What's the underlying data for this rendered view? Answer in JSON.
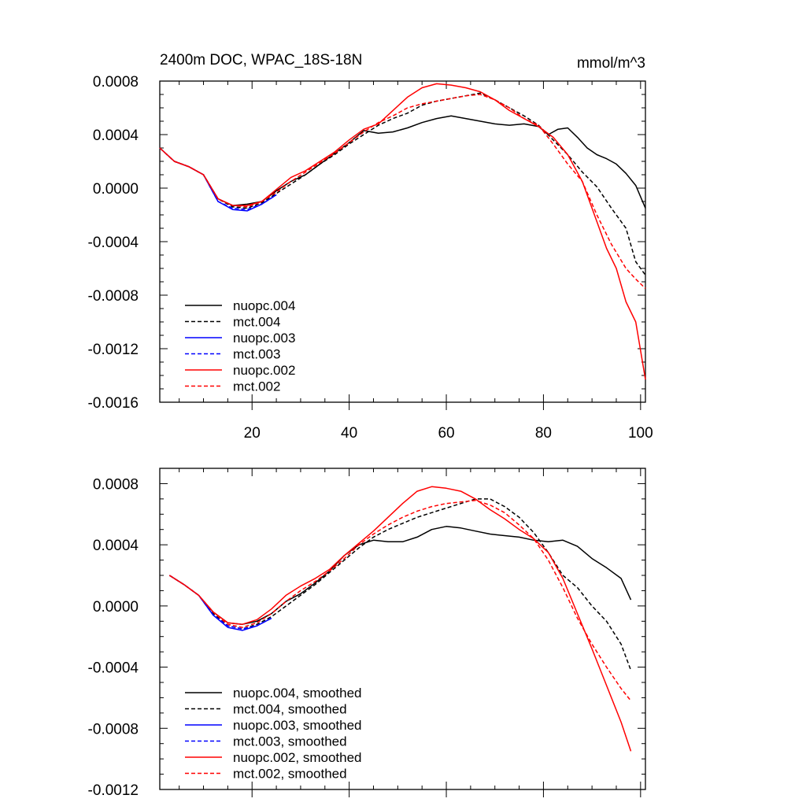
{
  "figure": {
    "title_left": "2400m DOC, WPAC_18S-18N",
    "title_right": "mmol/m^3"
  },
  "colors": {
    "black": "#000000",
    "blue": "#0000ff",
    "red": "#ff0000"
  },
  "chart_data": [
    {
      "type": "line",
      "title": "2400m DOC, WPAC_18S-18N",
      "units": "mmol/m^3",
      "xlim": [
        1,
        101
      ],
      "ylim": [
        -0.0016,
        0.0008
      ],
      "xticks": [
        20,
        40,
        60,
        80,
        100
      ],
      "xtick_labels": [
        "20",
        "40",
        "60",
        "80",
        "100"
      ],
      "yticks": [
        0.0008,
        0.0004,
        0.0,
        -0.0004,
        -0.0008,
        -0.0012,
        -0.0016
      ],
      "ytick_labels": [
        "0.0008",
        "0.0004",
        "0.0000",
        "-0.0004",
        "-0.0008",
        "-0.0012",
        "-0.0016"
      ],
      "legend_position": "bottom-left",
      "series": [
        {
          "name": "nuopc.004",
          "color": "#000000",
          "dash": "solid",
          "x": [
            1,
            4,
            7,
            10,
            13,
            16,
            19,
            22,
            25,
            28,
            31,
            34,
            37,
            40,
            43,
            46,
            49,
            52,
            55,
            58,
            61,
            64,
            67,
            70,
            73,
            76,
            79,
            81,
            83,
            85,
            87,
            89,
            91,
            93,
            95,
            97,
            99,
            101
          ],
          "y": [
            0.0003,
            0.0002,
            0.00016,
            0.0001,
            -8e-05,
            -0.00013,
            -0.00012,
            -0.0001,
            -2e-05,
            5e-05,
            0.0001,
            0.00018,
            0.00026,
            0.00034,
            0.00043,
            0.00041,
            0.00042,
            0.00045,
            0.00049,
            0.00052,
            0.00054,
            0.00052,
            0.0005,
            0.00048,
            0.00047,
            0.00048,
            0.00046,
            0.0004,
            0.00044,
            0.00045,
            0.00038,
            0.0003,
            0.00025,
            0.00022,
            0.00018,
            0.00011,
            2e-05,
            -0.00015
          ]
        },
        {
          "name": "mct.004",
          "color": "#000000",
          "dash": "dashed",
          "x": [
            1,
            4,
            7,
            10,
            13,
            16,
            19,
            22,
            25,
            28,
            31,
            34,
            37,
            40,
            43,
            46,
            49,
            52,
            55,
            58,
            61,
            64,
            67,
            70,
            73,
            76,
            79,
            82,
            85,
            88,
            91,
            94,
            97,
            99,
            101
          ],
          "y": [
            0.0003,
            0.0002,
            0.00016,
            0.0001,
            -8e-05,
            -0.00014,
            -0.00015,
            -0.00011,
            -4e-05,
            3e-05,
            0.0001,
            0.00018,
            0.00025,
            0.00033,
            0.0004,
            0.00047,
            0.00052,
            0.00056,
            0.00062,
            0.00065,
            0.00067,
            0.00069,
            0.00071,
            0.00066,
            0.0006,
            0.00054,
            0.00047,
            0.00036,
            0.00025,
            0.00012,
            1e-05,
            -0.00015,
            -0.0003,
            -0.00055,
            -0.00065
          ]
        },
        {
          "name": "nuopc.003",
          "color": "#0000ff",
          "dash": "solid",
          "x": [
            1,
            4,
            7,
            10,
            13,
            16,
            19,
            22,
            25
          ],
          "y": [
            0.0003,
            0.0002,
            0.00016,
            0.0001,
            -0.0001,
            -0.00016,
            -0.00017,
            -0.00012,
            -5e-05
          ]
        },
        {
          "name": "mct.003",
          "color": "#0000ff",
          "dash": "dashed",
          "x": [
            1,
            4,
            7,
            10,
            13,
            16,
            19,
            22,
            25
          ],
          "y": [
            0.0003,
            0.0002,
            0.00016,
            0.0001,
            -0.0001,
            -0.00015,
            -0.00016,
            -0.00012,
            -5e-05
          ]
        },
        {
          "name": "nuopc.002",
          "color": "#ff0000",
          "dash": "solid",
          "x": [
            1,
            4,
            7,
            10,
            13,
            16,
            19,
            22,
            25,
            28,
            31,
            34,
            37,
            40,
            43,
            46,
            49,
            52,
            55,
            58,
            61,
            64,
            67,
            70,
            73,
            76,
            79,
            82,
            85,
            88,
            91,
            93,
            95,
            97,
            99,
            101
          ],
          "y": [
            0.0003,
            0.0002,
            0.00016,
            0.0001,
            -8e-05,
            -0.00013,
            -0.00013,
            -0.0001,
            -1e-05,
            8e-05,
            0.00013,
            0.0002,
            0.00027,
            0.00036,
            0.00044,
            0.00048,
            0.00058,
            0.00068,
            0.00075,
            0.00078,
            0.00077,
            0.00075,
            0.00072,
            0.00066,
            0.00058,
            0.00052,
            0.00046,
            0.00038,
            0.00025,
            5e-05,
            -0.00025,
            -0.00045,
            -0.0006,
            -0.00085,
            -0.001,
            -0.00143
          ]
        },
        {
          "name": "mct.002",
          "color": "#ff0000",
          "dash": "dashed",
          "x": [
            1,
            4,
            7,
            10,
            13,
            16,
            19,
            22,
            25,
            28,
            31,
            34,
            37,
            40,
            43,
            46,
            49,
            52,
            55,
            58,
            61,
            64,
            67,
            70,
            73,
            76,
            79,
            82,
            85,
            88,
            91,
            94,
            97,
            99,
            101
          ],
          "y": [
            0.0003,
            0.0002,
            0.00016,
            0.0001,
            -8e-05,
            -0.00013,
            -0.00014,
            -0.0001,
            -3e-05,
            5e-05,
            0.00012,
            0.00019,
            0.00026,
            0.00034,
            0.00042,
            0.00049,
            0.00054,
            0.0006,
            0.00063,
            0.00065,
            0.00067,
            0.00069,
            0.0007,
            0.00066,
            0.0006,
            0.00052,
            0.00047,
            0.00033,
            0.00018,
            5e-05,
            -0.0002,
            -0.00042,
            -0.0006,
            -0.00068,
            -0.00075
          ]
        }
      ]
    },
    {
      "type": "line",
      "xlim": [
        1,
        101
      ],
      "ylim": [
        -0.0012,
        0.0009
      ],
      "xticks": [
        20,
        40,
        60,
        80,
        100
      ],
      "yticks": [
        0.0008,
        0.0004,
        0.0,
        -0.0004,
        -0.0008,
        -0.0012
      ],
      "ytick_labels": [
        "0.0008",
        "0.0004",
        "0.0000",
        "-0.0004",
        "-0.0008",
        "-0.0012"
      ],
      "legend_position": "bottom-left",
      "series": [
        {
          "name": "nuopc.004, smoothed",
          "color": "#000000",
          "dash": "solid",
          "x": [
            3,
            6,
            9,
            12,
            15,
            18,
            21,
            24,
            27,
            30,
            33,
            36,
            39,
            42,
            45,
            48,
            51,
            54,
            57,
            60,
            63,
            66,
            69,
            72,
            75,
            78,
            81,
            84,
            87,
            90,
            93,
            96,
            98
          ],
          "y": [
            0.0002,
            0.00014,
            7e-05,
            -4e-05,
            -0.00011,
            -0.00012,
            -0.0001,
            -5e-05,
            3e-05,
            8e-05,
            0.00015,
            0.00023,
            0.00033,
            0.0004,
            0.00043,
            0.00042,
            0.00042,
            0.00045,
            0.0005,
            0.00052,
            0.00051,
            0.00049,
            0.00047,
            0.00046,
            0.00045,
            0.00043,
            0.00042,
            0.00043,
            0.00039,
            0.00031,
            0.00025,
            0.00018,
            4e-05
          ]
        },
        {
          "name": "mct.004, smoothed",
          "color": "#000000",
          "dash": "dashed",
          "x": [
            3,
            6,
            9,
            12,
            15,
            18,
            21,
            24,
            27,
            30,
            33,
            36,
            39,
            42,
            45,
            48,
            51,
            54,
            57,
            60,
            63,
            66,
            69,
            72,
            75,
            78,
            81,
            84,
            87,
            90,
            93,
            96,
            98
          ],
          "y": [
            0.0002,
            0.00014,
            7e-05,
            -5e-05,
            -0.00013,
            -0.00015,
            -0.00012,
            -7e-05,
            0.0,
            7e-05,
            0.00014,
            0.00022,
            0.0003,
            0.00038,
            0.00045,
            0.0005,
            0.00054,
            0.00058,
            0.00061,
            0.00064,
            0.00067,
            0.0007,
            0.0007,
            0.00065,
            0.00058,
            0.00048,
            0.00035,
            0.0002,
            0.00012,
            0.0,
            -0.0001,
            -0.00025,
            -0.00042
          ]
        },
        {
          "name": "nuopc.003, smoothed",
          "color": "#0000ff",
          "dash": "solid",
          "x": [
            3,
            6,
            9,
            12,
            15,
            18,
            21,
            24
          ],
          "y": [
            0.0002,
            0.00014,
            7e-05,
            -6e-05,
            -0.00014,
            -0.00016,
            -0.00013,
            -8e-05
          ]
        },
        {
          "name": "mct.003, smoothed",
          "color": "#0000ff",
          "dash": "dashed",
          "x": [
            3,
            6,
            9,
            12,
            15,
            18,
            21,
            24
          ],
          "y": [
            0.0002,
            0.00014,
            7e-05,
            -6e-05,
            -0.00013,
            -0.00015,
            -0.00013,
            -8e-05
          ]
        },
        {
          "name": "nuopc.002, smoothed",
          "color": "#ff0000",
          "dash": "solid",
          "x": [
            3,
            6,
            9,
            12,
            15,
            18,
            21,
            24,
            27,
            30,
            33,
            36,
            39,
            42,
            45,
            48,
            51,
            54,
            57,
            60,
            63,
            66,
            69,
            72,
            75,
            78,
            81,
            84,
            87,
            90,
            93,
            96,
            98
          ],
          "y": [
            0.0002,
            0.00014,
            7e-05,
            -4e-05,
            -0.00011,
            -0.00012,
            -9e-05,
            -2e-05,
            7e-05,
            0.00013,
            0.00018,
            0.00024,
            0.00033,
            0.00041,
            0.00049,
            0.00058,
            0.00067,
            0.00075,
            0.00078,
            0.00077,
            0.00075,
            0.0007,
            0.00063,
            0.00057,
            0.0005,
            0.00044,
            0.00035,
            0.00018,
            -5e-05,
            -0.00028,
            -0.00052,
            -0.00076,
            -0.00095
          ]
        },
        {
          "name": "mct.002, smoothed",
          "color": "#ff0000",
          "dash": "dashed",
          "x": [
            3,
            6,
            9,
            12,
            15,
            18,
            21,
            24,
            27,
            30,
            33,
            36,
            39,
            42,
            45,
            48,
            51,
            54,
            57,
            60,
            63,
            66,
            69,
            72,
            75,
            78,
            81,
            84,
            87,
            90,
            93,
            96,
            98
          ],
          "y": [
            0.0002,
            0.00014,
            7e-05,
            -4e-05,
            -0.00012,
            -0.00014,
            -0.00011,
            -5e-05,
            3e-05,
            0.0001,
            0.00016,
            0.00023,
            0.00031,
            0.0004,
            0.00047,
            0.00053,
            0.00058,
            0.00062,
            0.00065,
            0.00067,
            0.00068,
            0.00069,
            0.00066,
            0.00061,
            0.00053,
            0.00044,
            0.0003,
            0.00012,
            -8e-05,
            -0.00025,
            -0.0004,
            -0.00054,
            -0.00062
          ]
        }
      ]
    }
  ]
}
